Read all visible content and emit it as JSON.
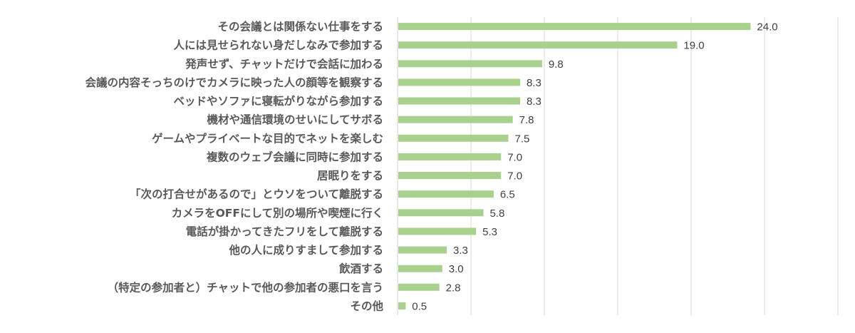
{
  "chart_data": {
    "type": "bar",
    "orientation": "horizontal",
    "title": "",
    "xlabel": "",
    "ylabel": "",
    "xlim": [
      0,
      30
    ],
    "grid": true,
    "grid_step": 5,
    "bar_color": "#a9d18e",
    "text_color": "#595959",
    "grid_color": "#d9d9d9",
    "categories": [
      "その会議とは関係ない仕事をする",
      "人には見せられない身だしなみで参加する",
      "発声せず、チャットだけで会話に加わる",
      "会議の内容そっちのけでカメラに映った人の顔等を観察する",
      "ベッドやソファに寝転がりながら参加する",
      "機材や通信環境のせいにしてサボる",
      "ゲームやプライベートな目的でネットを楽しむ",
      "複数のウェブ会議に同時に参加する",
      "居眠りをする",
      "「次の打合せがあるので」とウソをついて離脱する",
      "カメラをOFFにして別の場所や喫煙に行く",
      "電話が掛かってきたフリをして離脱する",
      "他の人に成りすまして参加する",
      "飲酒する",
      "（特定の参加者と）チャットで他の参加者の悪口を言う",
      "その他"
    ],
    "values": [
      24.0,
      19.0,
      9.8,
      8.3,
      8.3,
      7.8,
      7.5,
      7.0,
      7.0,
      6.5,
      5.8,
      5.3,
      3.3,
      3.0,
      2.8,
      0.5
    ],
    "value_labels": [
      "24.0",
      "19.0",
      "9.8",
      "8.3",
      "8.3",
      "7.8",
      "7.5",
      "7.0",
      "7.0",
      "6.5",
      "5.8",
      "5.3",
      "3.3",
      "3.0",
      "2.8",
      "0.5"
    ]
  }
}
